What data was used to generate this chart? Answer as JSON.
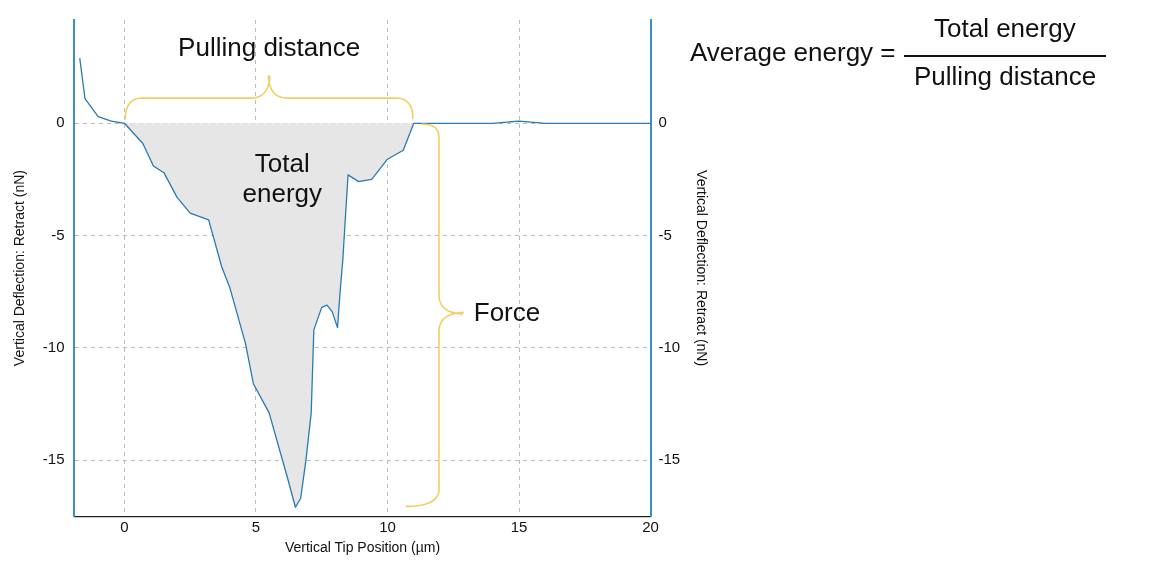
{
  "chart_data": {
    "type": "line",
    "xlabel": "Vertical Tip Position (µm)",
    "ylabel": "Vertical Deflection: Retract (nN)",
    "y2label": "Vertical Deflection: Retract (nN)",
    "xlim": [
      -1.9,
      20
    ],
    "xticks": [
      0,
      5,
      10,
      15,
      20
    ],
    "ylim": [
      -17.5,
      4.6
    ],
    "yticks": [
      -15,
      -10,
      -5,
      0
    ],
    "y2lim": [
      -17.5,
      4.6
    ],
    "y2ticks": [
      -15,
      -10,
      -5,
      0
    ],
    "grid": true,
    "legend": false,
    "marker": "none",
    "series": [
      {
        "type": "area",
        "color": "#e6e6e6",
        "x": [
          0,
          0.7,
          1.1,
          1.5,
          2.0,
          2.5,
          3.2,
          3.7,
          4.0,
          4.6,
          4.9,
          5.5,
          6.2,
          6.5,
          6.7,
          6.9,
          7.1,
          7.2,
          7.5,
          7.7,
          7.9,
          8.1,
          8.2,
          8.3,
          8.4,
          8.5,
          8.9,
          9.4,
          10.0,
          10.6,
          10.8,
          11.0
        ],
        "values": [
          0,
          -0.9,
          -1.9,
          -2.2,
          -3.3,
          -4.0,
          -4.3,
          -6.4,
          -7.3,
          -9.8,
          -11.6,
          -12.9,
          -15.8,
          -17.1,
          -16.7,
          -15.0,
          -12.9,
          -9.2,
          -8.2,
          -8.1,
          -8.4,
          -9.1,
          -7.5,
          -6.1,
          -4.2,
          -2.3,
          -2.6,
          -2.5,
          -1.6,
          -1.2,
          -0.6,
          0
        ]
      },
      {
        "type": "line",
        "color": "#2a7ab0",
        "x": [
          -1.7,
          -1.5,
          -1.0,
          -0.5,
          0,
          0.7,
          1.1,
          1.5,
          2.0,
          2.5,
          3.2,
          3.7,
          4.0,
          4.6,
          4.9,
          5.5,
          6.2,
          6.5,
          6.7,
          6.9,
          7.1,
          7.2,
          7.5,
          7.7,
          7.9,
          8.1,
          8.2,
          8.3,
          8.4,
          8.5,
          8.9,
          9.4,
          10.0,
          10.6,
          10.8,
          11.0,
          12,
          13,
          14,
          15,
          16,
          17,
          18,
          19,
          20
        ],
        "values": [
          2.9,
          1.1,
          0.3,
          0.1,
          0,
          -0.9,
          -1.9,
          -2.2,
          -3.3,
          -4.0,
          -4.3,
          -6.4,
          -7.3,
          -9.8,
          -11.6,
          -12.9,
          -15.8,
          -17.1,
          -16.7,
          -15.0,
          -12.9,
          -9.2,
          -8.2,
          -8.1,
          -8.4,
          -9.1,
          -7.5,
          -6.1,
          -4.2,
          -2.3,
          -2.6,
          -2.5,
          -1.6,
          -1.2,
          -0.6,
          0,
          0,
          0,
          0,
          0.1,
          0,
          0,
          0,
          0,
          0
        ]
      }
    ],
    "annotations": [
      "Pulling distance",
      "Total energy",
      "Force",
      "Average energy =",
      "Total energy",
      "Pulling distance"
    ]
  }
}
